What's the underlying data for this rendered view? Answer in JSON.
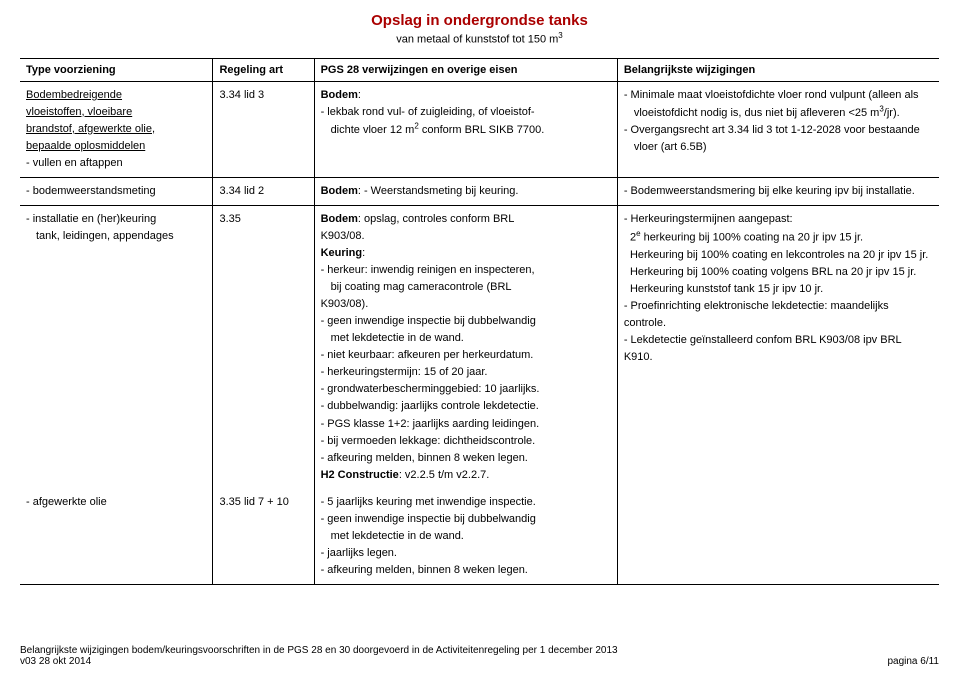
{
  "header": {
    "title": "Opslag in ondergrondse tanks",
    "subtitle_html": "van metaal of kunststof tot 150 m<sup>3</sup>"
  },
  "columns": {
    "c1": "Type voorziening",
    "c2": "Regeling art",
    "c3": "PGS 28 verwijzingen en overige eisen",
    "c4": "Belangrijkste wijzigingen"
  },
  "rows": [
    {
      "c1_html": "<span class='u'>Bodembedreigende</span><br><span class='u'>vloeistoffen, vloeibare</span><br><span class='u'>brandstof, afgewerkte olie,</span><br><span class='u'>bepaalde oplosmiddelen</span><br>- vullen en aftappen",
      "c2": "3.34 lid 3",
      "c3_html": "<span class='b'>Bodem</span>:<br>- lekbak rond vul- of zuigleiding, of vloeistof-<br><span class='indent'>dichte vloer 12 m<sup>2</sup> conform BRL SIKB 7700.</span>",
      "c4_html": "- Minimale maat vloeistofdichte vloer rond vulpunt (alleen als<br><span class='indent'>vloeistofdicht nodig is, dus niet bij afleveren &lt;25 m<sup>3</sup>/jr).</span><br>- Overgangsrecht art 3.34 lid 3 tot 1-12-2028 voor bestaande<br><span class='indent'>vloer (art 6.5B)</span>"
    },
    {
      "c1_html": "- bodemweerstandsmeting",
      "c2": "3.34 lid 2",
      "c3_html": "<span class='b'>Bodem</span>: - Weerstandsmeting bij keuring.",
      "c4_html": "- Bodemweerstandsmering bij elke keuring ipv bij installatie."
    },
    {
      "no_bottom": true,
      "c1_html": "- installatie en (her)keuring<br><span class='indent'>tank, leidingen, appendages</span>",
      "c2": "3.35",
      "c3_html": "<span class='b'>Bodem</span>: opslag, controles conform BRL<br>K903/08.<br><span class='b'>Keuring</span>:<br>- herkeur: inwendig reinigen en inspecteren,<br><span class='indent'>bij coating mag cameracontrole (BRL</span><br>K903/08).<br>- geen inwendige inspectie bij dubbelwandig<br><span class='indent'>met lekdetectie in de wand.</span><br>- niet keurbaar: afkeuren per herkeurdatum.<br>- herkeuringstermijn: 15 of 20 jaar.<br>- grondwaterbescherminggebied: 10 jaarlijks.<br>- dubbelwandig: jaarlijks controle lekdetectie.<br>- PGS klasse 1+2: jaarlijks aarding leidingen.<br>- bij vermoeden lekkage: dichtheidscontrole.<br>- afkeuring melden, binnen 8 weken legen.<br><span class='b'>H2 Constructie</span>: v2.2.5 t/m v2.2.7.",
      "c4_html": "- Herkeuringstermijnen aangepast:<br>&nbsp;&nbsp;2<sup>e</sup> herkeuring bij 100% coating na 20 jr ipv 15 jr.<br>&nbsp;&nbsp;Herkeuring bij 100% coating en lekcontroles na 20 jr ipv 15 jr.<br>&nbsp;&nbsp;Herkeuring bij 100% coating volgens BRL na 20 jr ipv 15 jr.<br>&nbsp;&nbsp;Herkeuring kunststof tank 15 jr ipv 10 jr.<br>- Proefinrichting elektronische lekdetectie: maandelijks controle.<br>- Lekdetectie geïnstalleerd confom BRL K903/08 ipv BRL K910."
    },
    {
      "c1_html": "- afgewerkte olie",
      "c2": "3.35 lid 7 + 10",
      "c3_html": "- 5 jaarlijks keuring met inwendige inspectie.<br>- geen inwendige inspectie bij dubbelwandig<br><span class='indent'>met lekdetectie in de wand.</span><br>- jaarlijks legen.<br>- afkeuring melden, binnen 8 weken legen.",
      "c4_html": ""
    }
  ],
  "footer": {
    "line1": "Belangrijkste wijzigingen bodem/keuringsvoorschriften in de PGS 28 en 30 doorgevoerd in de Activiteitenregeling per 1 december 2013",
    "line2": "v03 28 okt 2014",
    "page": "pagina 6/11"
  }
}
